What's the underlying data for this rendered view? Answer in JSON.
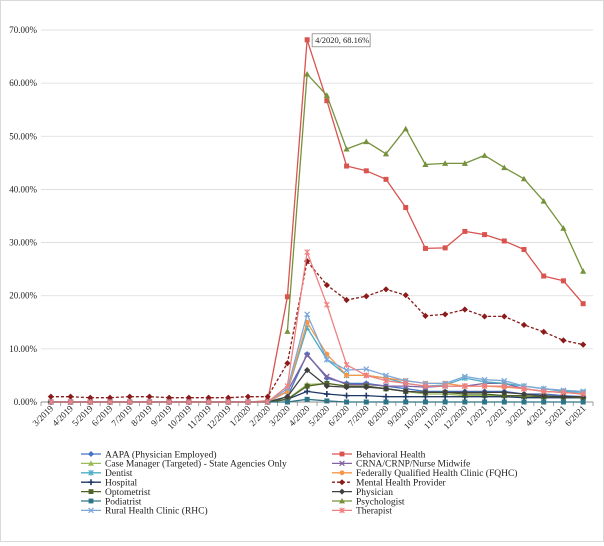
{
  "chart_data": {
    "type": "line",
    "title": "",
    "xlabel": "",
    "ylabel": "",
    "ylim": [
      0,
      0.7
    ],
    "y_ticks": [
      0,
      0.1,
      0.2,
      0.3,
      0.4,
      0.5,
      0.6,
      0.7
    ],
    "y_tick_labels": [
      "0.00%",
      "10.00%",
      "20.00%",
      "30.00%",
      "40.00%",
      "50.00%",
      "60.00%",
      "70.00%"
    ],
    "categories": [
      "3/2019",
      "4/2019",
      "5/2019",
      "6/2019",
      "7/2019",
      "8/2019",
      "9/2019",
      "10/2019",
      "11/2019",
      "12/2019",
      "1/2020",
      "2/2020",
      "3/2020",
      "4/2020",
      "5/2020",
      "6/2020",
      "7/2020",
      "8/2020",
      "9/2020",
      "10/2020",
      "11/2020",
      "12/2020",
      "1/2021",
      "2/2021",
      "3/2021",
      "4/2021",
      "5/2021",
      "6/2021"
    ],
    "annotation": {
      "text": "4/2020, 68.16%",
      "category_index": 13,
      "series": "Behavioral Health"
    },
    "series": [
      {
        "name": "AAPA (Physician Employed)",
        "color": "#4472c4",
        "marker": "diamond",
        "dash": false,
        "values": [
          0,
          0,
          0,
          0,
          0,
          0,
          0,
          0,
          0,
          0,
          0,
          0,
          0.01,
          0.09,
          0.045,
          0.035,
          0.035,
          0.03,
          0.025,
          0.02,
          0.02,
          0.02,
          0.02,
          0.02,
          0.015,
          0.015,
          0.012,
          0.01
        ]
      },
      {
        "name": "Behavioral Health",
        "color": "#d9534f",
        "marker": "square",
        "dash": false,
        "values": [
          0,
          0,
          0,
          0,
          0,
          0,
          0,
          0,
          0,
          0,
          0,
          0.002,
          0.198,
          0.6816,
          0.567,
          0.444,
          0.435,
          0.419,
          0.366,
          0.289,
          0.29,
          0.321,
          0.315,
          0.303,
          0.287,
          0.237,
          0.228,
          0.185
        ]
      },
      {
        "name": "Case Manager (Targeted) - State Agencies Only",
        "color": "#9bbb59",
        "marker": "triangle",
        "dash": false,
        "values": [
          0,
          0,
          0,
          0,
          0,
          0,
          0,
          0,
          0,
          0,
          0,
          0,
          0.005,
          0.033,
          0.035,
          0.03,
          0.03,
          0.025,
          0.02,
          0.015,
          0.015,
          0.012,
          0.012,
          0.012,
          0.01,
          0.01,
          0.008,
          0.008
        ]
      },
      {
        "name": "CRNA/CRNP/Nurse Midwife",
        "color": "#8064a2",
        "marker": "x",
        "dash": false,
        "values": [
          0,
          0,
          0,
          0,
          0,
          0,
          0,
          0,
          0,
          0,
          0,
          0,
          0.02,
          0.088,
          0.048,
          0.033,
          0.033,
          0.03,
          0.03,
          0.028,
          0.03,
          0.03,
          0.035,
          0.035,
          0.025,
          0.02,
          0.018,
          0.015
        ]
      },
      {
        "name": "Dentist",
        "color": "#4bacc6",
        "marker": "star",
        "dash": false,
        "values": [
          0,
          0,
          0,
          0,
          0,
          0,
          0,
          0,
          0,
          0,
          0,
          0,
          0.02,
          0.14,
          0.08,
          0.05,
          0.05,
          0.045,
          0.035,
          0.03,
          0.032,
          0.045,
          0.038,
          0.035,
          0.03,
          0.025,
          0.02,
          0.018
        ]
      },
      {
        "name": "Federally Qualified Health Clinic (FQHC)",
        "color": "#f79646",
        "marker": "circle",
        "dash": false,
        "values": [
          0,
          0,
          0,
          0,
          0,
          0,
          0,
          0,
          0,
          0,
          0,
          0,
          0.02,
          0.15,
          0.09,
          0.05,
          0.05,
          0.045,
          0.04,
          0.035,
          0.035,
          0.03,
          0.03,
          0.028,
          0.025,
          0.02,
          0.018,
          0.015
        ]
      },
      {
        "name": "Hospital",
        "color": "#1f3864",
        "marker": "plus",
        "dash": false,
        "values": [
          0,
          0,
          0,
          0,
          0,
          0,
          0,
          0,
          0,
          0,
          0,
          0,
          0.005,
          0.02,
          0.015,
          0.012,
          0.012,
          0.01,
          0.01,
          0.01,
          0.01,
          0.01,
          0.01,
          0.01,
          0.008,
          0.008,
          0.008,
          0.008
        ]
      },
      {
        "name": "Mental Health Provider",
        "color": "#8b1a1a",
        "marker": "diamond",
        "dash": true,
        "values": [
          0.01,
          0.01,
          0.008,
          0.008,
          0.01,
          0.01,
          0.008,
          0.008,
          0.008,
          0.008,
          0.01,
          0.01,
          0.073,
          0.265,
          0.22,
          0.192,
          0.199,
          0.212,
          0.201,
          0.162,
          0.165,
          0.174,
          0.161,
          0.161,
          0.145,
          0.132,
          0.116,
          0.108
        ]
      },
      {
        "name": "Optometrist",
        "color": "#4f6228",
        "marker": "square",
        "dash": false,
        "values": [
          0,
          0,
          0,
          0,
          0,
          0,
          0,
          0,
          0,
          0,
          0,
          0,
          0.005,
          0.03,
          0.035,
          0.03,
          0.03,
          0.025,
          0.02,
          0.018,
          0.018,
          0.015,
          0.015,
          0.012,
          0.012,
          0.01,
          0.01,
          0.008
        ]
      },
      {
        "name": "Physician",
        "color": "#404040",
        "marker": "diamond",
        "dash": false,
        "values": [
          0,
          0,
          0,
          0,
          0,
          0,
          0,
          0,
          0,
          0,
          0,
          0,
          0.01,
          0.06,
          0.03,
          0.028,
          0.028,
          0.025,
          0.02,
          0.018,
          0.018,
          0.018,
          0.018,
          0.018,
          0.015,
          0.012,
          0.01,
          0.01
        ]
      },
      {
        "name": "Podiatrist",
        "color": "#2e7486",
        "marker": "square",
        "dash": false,
        "values": [
          0,
          0,
          0,
          0,
          0,
          0,
          0,
          0,
          0,
          0,
          0,
          0,
          0,
          0.005,
          0.002,
          0,
          0,
          0,
          0,
          0,
          0,
          0,
          0,
          0,
          0,
          0,
          0,
          0
        ]
      },
      {
        "name": "Psychologist",
        "color": "#76923c",
        "marker": "triangle",
        "dash": false,
        "values": [
          null,
          null,
          null,
          null,
          null,
          null,
          null,
          null,
          null,
          null,
          null,
          null,
          0.133,
          0.617,
          0.577,
          0.476,
          0.49,
          0.467,
          0.514,
          0.447,
          0.449,
          0.449,
          0.464,
          0.441,
          0.42,
          0.378,
          0.327,
          0.246
        ]
      },
      {
        "name": "Rural Health Clinic (RHC)",
        "color": "#7fa8d8",
        "marker": "x",
        "dash": false,
        "values": [
          0,
          0,
          0,
          0,
          0,
          0,
          0,
          0,
          0,
          0,
          0,
          0,
          0.025,
          0.165,
          0.08,
          0.06,
          0.062,
          0.05,
          0.04,
          0.035,
          0.035,
          0.048,
          0.042,
          0.04,
          0.03,
          0.025,
          0.022,
          0.02
        ]
      },
      {
        "name": "Therapist",
        "color": "#f08080",
        "marker": "star",
        "dash": false,
        "values": [
          0,
          0,
          0,
          0,
          0,
          0,
          0,
          0,
          0,
          0,
          0,
          0,
          0.03,
          0.282,
          0.183,
          0.07,
          0.05,
          0.04,
          0.035,
          0.03,
          0.03,
          0.03,
          0.03,
          0.03,
          0.025,
          0.02,
          0.018,
          0.015
        ]
      }
    ]
  }
}
